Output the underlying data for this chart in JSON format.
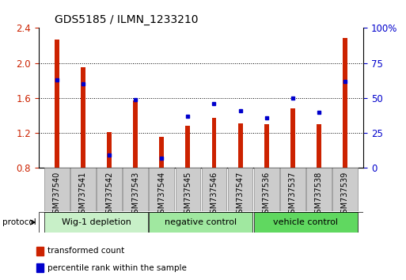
{
  "title": "GDS5185 / ILMN_1233210",
  "samples": [
    "GSM737540",
    "GSM737541",
    "GSM737542",
    "GSM737543",
    "GSM737544",
    "GSM737545",
    "GSM737546",
    "GSM737547",
    "GSM737536",
    "GSM737537",
    "GSM737538",
    "GSM737539"
  ],
  "transformed_count": [
    2.27,
    1.95,
    1.21,
    1.57,
    1.16,
    1.28,
    1.37,
    1.31,
    1.3,
    1.48,
    1.3,
    2.29
  ],
  "percentile_rank": [
    63,
    60,
    9,
    49,
    7,
    37,
    46,
    41,
    36,
    50,
    40,
    62
  ],
  "ylim_left": [
    0.8,
    2.4
  ],
  "ylim_right": [
    0,
    100
  ],
  "yticks_left": [
    0.8,
    1.2,
    1.6,
    2.0,
    2.4
  ],
  "yticks_right": [
    0,
    25,
    50,
    75,
    100
  ],
  "bar_color": "#cc2200",
  "marker_color": "#0000cc",
  "group_labels": [
    "Wig-1 depletion",
    "negative control",
    "vehicle control"
  ],
  "group_starts": [
    0,
    4,
    8
  ],
  "group_ends": [
    3,
    7,
    11
  ],
  "group_colors": [
    "#c8f0c8",
    "#a0e8a0",
    "#60d860"
  ],
  "protocol_label": "protocol",
  "legend_labels": [
    "transformed count",
    "percentile rank within the sample"
  ],
  "legend_colors": [
    "#cc2200",
    "#0000cc"
  ],
  "bar_width": 0.18,
  "baseline": 0.8
}
